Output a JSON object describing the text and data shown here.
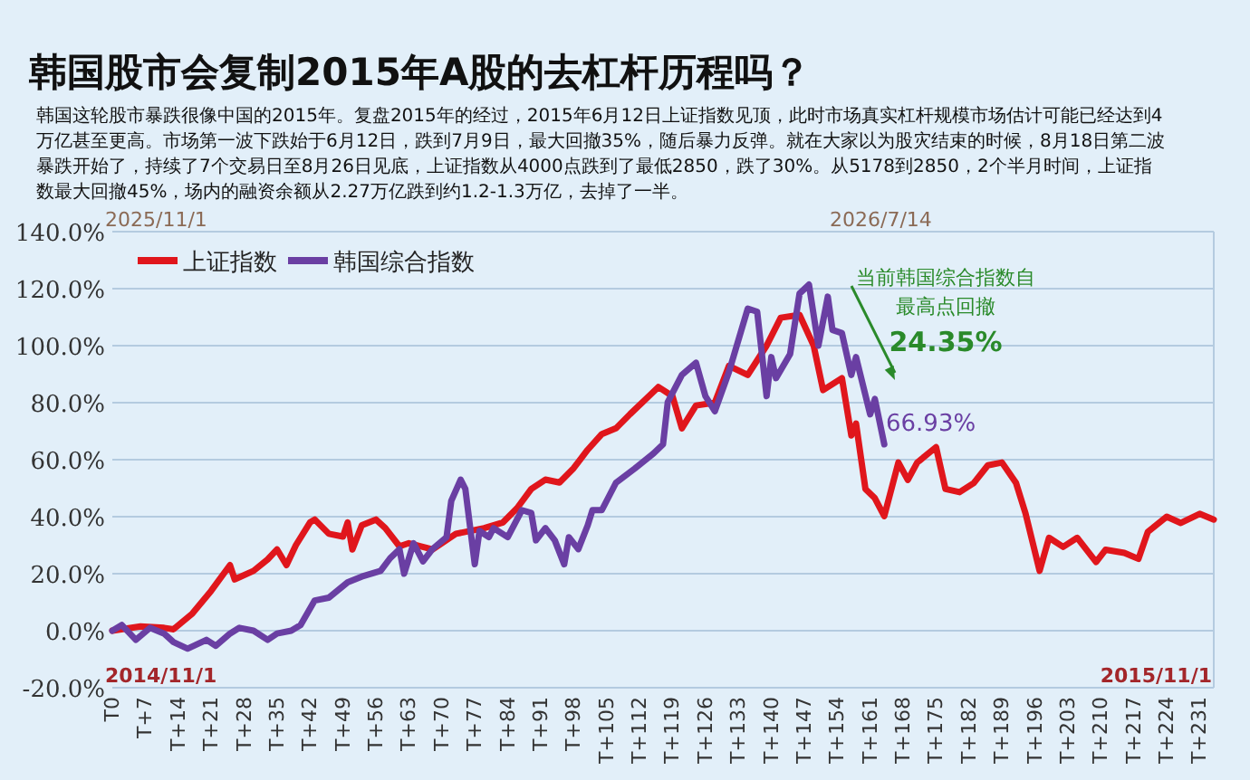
{
  "chart_data": {
    "type": "line",
    "title": "韩国股市会复制2015年A股的去杠杆历程吗？",
    "subtitle": "韩国这轮股市暴跌很像中国的2015年。复盘2015年的经过，2015年6月12日上证指数见顶，此时市场真实杠杆规模市场估计可能已经达到4万亿甚至更高。市场第一波下跌始于6月12日，跌到7月9日，最大回撤35%，随后暴力反弹。就在大家以为股灾结束的时候，8月18日第二波暴跌开始了，持续了7个交易日至8月26日见底，上证指数从4000点跌到了最低2850，跌了30%。从5178到2850，2个半月时间，上证指数最大回撤45%，场内的融资余额从2.27万亿跌到约1.2-1.3万亿，去掉了一半。",
    "categories": [
      "T0",
      null,
      null,
      null,
      null,
      null,
      null,
      "T+7",
      null,
      null,
      null,
      null,
      null,
      null,
      "T+14",
      null,
      null,
      null,
      null,
      null,
      null,
      "T+21",
      null,
      null,
      null,
      null,
      null,
      null,
      "T+28",
      null,
      null,
      null,
      null,
      null,
      null,
      "T+35",
      null,
      null,
      null,
      null,
      null,
      null,
      "T+42",
      null,
      null,
      null,
      null,
      null,
      null,
      "T+49",
      null,
      null,
      null,
      null,
      null,
      null,
      "T+56",
      null,
      null,
      null,
      null,
      null,
      null,
      "T+63",
      null,
      null,
      null,
      null,
      null,
      null,
      "T+70",
      null,
      null,
      null,
      null,
      null,
      null,
      "T+77",
      null,
      null,
      null,
      null,
      null,
      null,
      "T+84",
      null,
      null,
      null,
      null,
      null,
      null,
      "T+91",
      null,
      null,
      null,
      null,
      null,
      null,
      "T+98",
      null,
      null,
      null,
      null,
      null,
      null,
      "T+105",
      null,
      null,
      null,
      null,
      null,
      null,
      "T+112",
      null,
      null,
      null,
      null,
      null,
      null,
      "T+119",
      null,
      null,
      null,
      null,
      null,
      null,
      "T+126",
      null,
      null,
      null,
      null,
      null,
      null,
      "T+133",
      null,
      null,
      null,
      null,
      null,
      null,
      "T+140",
      null,
      null,
      null,
      null,
      null,
      null,
      "T+147",
      null,
      null,
      null,
      null,
      null,
      null,
      "T+154",
      null,
      null,
      null,
      null,
      null,
      null,
      "T+161",
      null,
      null,
      null,
      null,
      null,
      null,
      "T+168",
      null,
      null,
      null,
      null,
      null,
      null,
      "T+175",
      null,
      null,
      null,
      null,
      null,
      null,
      "T+182",
      null,
      null,
      null,
      null,
      null,
      null,
      "T+189",
      null,
      null,
      null,
      null,
      null,
      null,
      "T+196",
      null,
      null,
      null,
      null,
      null,
      null,
      "T+203",
      null,
      null,
      null,
      null,
      null,
      null,
      "T+210",
      null,
      null,
      null,
      null,
      null,
      null,
      "T+217",
      null,
      null,
      null,
      null,
      null,
      null,
      "T+224",
      null,
      null,
      null,
      null,
      null,
      null,
      "T+231",
      null,
      null,
      null
    ],
    "ylim": [
      -20,
      140
    ],
    "yticks": [
      {
        "value": -20,
        "label": "-20.0%"
      },
      {
        "value": 0,
        "label": "0.0%"
      },
      {
        "value": 20,
        "label": "20.0%"
      },
      {
        "value": 40,
        "label": "40.0%"
      },
      {
        "value": 60,
        "label": "60.0%"
      },
      {
        "value": 80,
        "label": "80.0%"
      },
      {
        "value": 100,
        "label": "100.0%"
      },
      {
        "value": 120,
        "label": "120.0%"
      },
      {
        "value": 140,
        "label": "140.0%"
      }
    ],
    "grid": "y",
    "legend": "top left",
    "marker": "none",
    "line_style": "solid",
    "series": [
      {
        "name": "上证指数",
        "color": "#e0161c",
        "values": [
          0,
          null,
          null,
          null,
          null,
          null,
          1.5,
          null,
          null,
          null,
          null,
          1,
          null,
          0.5,
          null,
          null,
          null,
          6,
          null,
          null,
          null,
          14,
          null,
          null,
          null,
          23,
          18,
          null,
          null,
          null,
          21,
          null,
          null,
          25,
          null,
          28.5,
          null,
          23,
          null,
          30,
          null,
          null,
          38,
          39,
          null,
          null,
          34,
          null,
          null,
          33,
          38,
          28.5,
          null,
          37,
          null,
          null,
          39,
          null,
          36,
          null,
          null,
          29.6,
          null,
          30.7,
          null,
          null,
          null,
          null,
          28.5,
          null,
          null,
          null,
          null,
          34,
          null,
          null,
          null,
          null,
          null,
          36,
          null,
          null,
          null,
          38,
          null,
          null,
          43,
          null,
          null,
          49.7,
          null,
          null,
          53,
          null,
          null,
          52,
          null,
          null,
          57,
          null,
          null,
          63.5,
          null,
          null,
          69,
          null,
          null,
          71,
          null,
          null,
          76,
          null,
          null,
          null,
          82.3,
          null,
          85.5,
          null,
          null,
          82.3,
          null,
          71,
          null,
          null,
          79,
          null,
          null,
          null,
          80,
          null,
          null,
          92.9,
          null,
          null,
          null,
          89.7,
          null,
          null,
          null,
          100,
          null,
          null,
          109.8,
          null,
          null,
          null,
          110.8,
          null,
          null,
          100,
          null,
          84.4,
          null,
          null,
          null,
          88.6,
          null,
          68.5,
          72.7,
          null,
          49.7,
          null,
          46.5,
          null,
          40.2,
          null,
          null,
          59,
          null,
          52.9,
          null,
          59,
          null,
          null,
          null,
          64.4,
          null,
          49.7,
          null,
          null,
          48.6,
          null,
          null,
          51.8,
          null,
          null,
          58,
          null,
          null,
          59,
          null,
          null,
          51.8,
          null,
          41.2,
          null,
          null,
          21,
          null,
          32.6,
          null,
          null,
          29.4,
          null,
          null,
          32.6,
          null,
          null,
          null,
          24.1,
          null,
          28.4,
          null,
          null,
          null,
          27.3,
          null,
          null,
          25.2,
          null,
          34.7,
          null,
          null,
          null,
          40,
          null,
          null,
          37.8,
          null,
          null,
          null,
          41,
          null,
          null,
          39
        ]
      },
      {
        "name": "韩国综合指数",
        "color": "#6a3fa3",
        "values": [
          0,
          null,
          2,
          null,
          null,
          -3.2,
          null,
          null,
          1,
          null,
          null,
          -1,
          null,
          -4,
          null,
          null,
          -6.3,
          null,
          null,
          null,
          -3.2,
          null,
          -5.3,
          null,
          null,
          -1,
          null,
          1,
          null,
          null,
          0,
          null,
          null,
          -3.2,
          null,
          -1,
          null,
          null,
          0,
          null,
          2,
          null,
          null,
          10.6,
          null,
          null,
          11.6,
          null,
          null,
          null,
          17,
          null,
          null,
          19,
          null,
          null,
          null,
          21,
          null,
          25.4,
          null,
          28.6,
          20,
          null,
          30.7,
          null,
          24.3,
          null,
          28.6,
          null,
          null,
          32.8,
          45.5,
          null,
          53,
          49.7,
          null,
          23.3,
          35,
          null,
          32.8,
          36,
          null,
          null,
          32.8,
          null,
          null,
          42.3,
          null,
          41.3,
          31.7,
          null,
          36,
          null,
          31.7,
          null,
          23.3,
          32.8,
          null,
          28.6,
          null,
          37,
          42.3,
          null,
          42.3,
          null,
          null,
          51.9,
          null,
          null,
          null,
          56.9,
          null,
          null,
          null,
          62.2,
          null,
          65.4,
          80.2,
          null,
          null,
          89.7,
          null,
          null,
          94,
          null,
          82.3,
          null,
          77,
          null,
          null,
          90.8,
          null,
          null,
          null,
          113,
          null,
          111.9,
          null,
          82.3,
          96,
          88.6,
          null,
          null,
          97.1,
          null,
          118.3,
          null,
          121.4,
          null,
          100,
          null,
          117.2,
          105.5,
          null,
          104.4,
          null,
          89.7,
          96,
          null,
          null,
          75.9,
          81.3,
          null,
          65.4,
          null,
          null,
          null,
          null,
          null,
          null,
          null,
          null,
          null,
          null,
          null,
          null,
          null,
          null,
          null,
          null,
          null,
          null,
          null,
          null,
          null,
          null,
          null,
          null,
          null,
          null,
          null,
          null,
          null,
          null,
          null,
          null,
          null,
          null,
          null,
          null,
          null,
          null,
          null,
          null,
          null,
          null,
          null,
          null,
          null,
          null,
          null,
          null,
          null,
          null,
          null,
          null,
          null,
          null,
          null,
          null,
          null,
          null,
          null,
          null,
          null,
          null,
          null,
          null,
          null,
          null,
          null,
          null,
          null,
          null
        ]
      }
    ],
    "annotations": [
      "2025/11/1",
      "2026/7/14",
      "2014/11/1",
      "2015/11/1",
      "66.93%",
      "当前韩国综合指数自最高点回撤",
      "24.35%"
    ]
  }
}
